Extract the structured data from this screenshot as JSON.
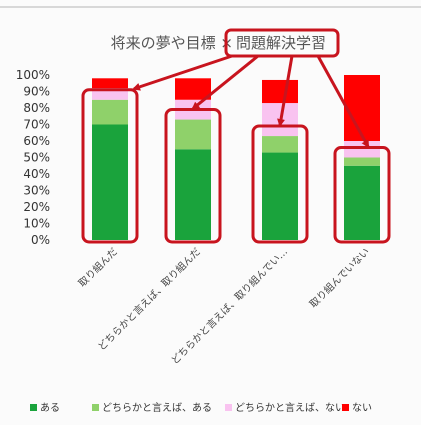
{
  "chart_data": {
    "type": "bar",
    "stacked": true,
    "title": "将来の夢や目標 × ",
    "title_highlight": "問題解決学習",
    "categories": [
      "取り組んだ",
      "どちらかと言えば、取り組んだ",
      "どちらかと言えば、取り組んでい…",
      "取り組んでいない"
    ],
    "series": [
      {
        "name": "ある",
        "color": "#1aa33c",
        "values": [
          70,
          55,
          53,
          45
        ]
      },
      {
        "name": "どちらかと言えば、ある",
        "color": "#8fd16a",
        "values": [
          15,
          18,
          10,
          5
        ]
      },
      {
        "name": "どちらかと言えば、ない",
        "color": "#f9c3f0",
        "values": [
          7,
          12,
          20,
          10
        ]
      },
      {
        "name": "ない",
        "color": "#ff0000",
        "values": [
          6,
          13,
          14,
          40
        ]
      }
    ],
    "yticks": [
      "0%",
      "10%",
      "20%",
      "30%",
      "40%",
      "50%",
      "60%",
      "70%",
      "80%",
      "90%",
      "100%"
    ],
    "ylim": [
      0,
      100
    ],
    "grid": false,
    "legend": "bottom",
    "annotation_color": "#c8141e"
  }
}
